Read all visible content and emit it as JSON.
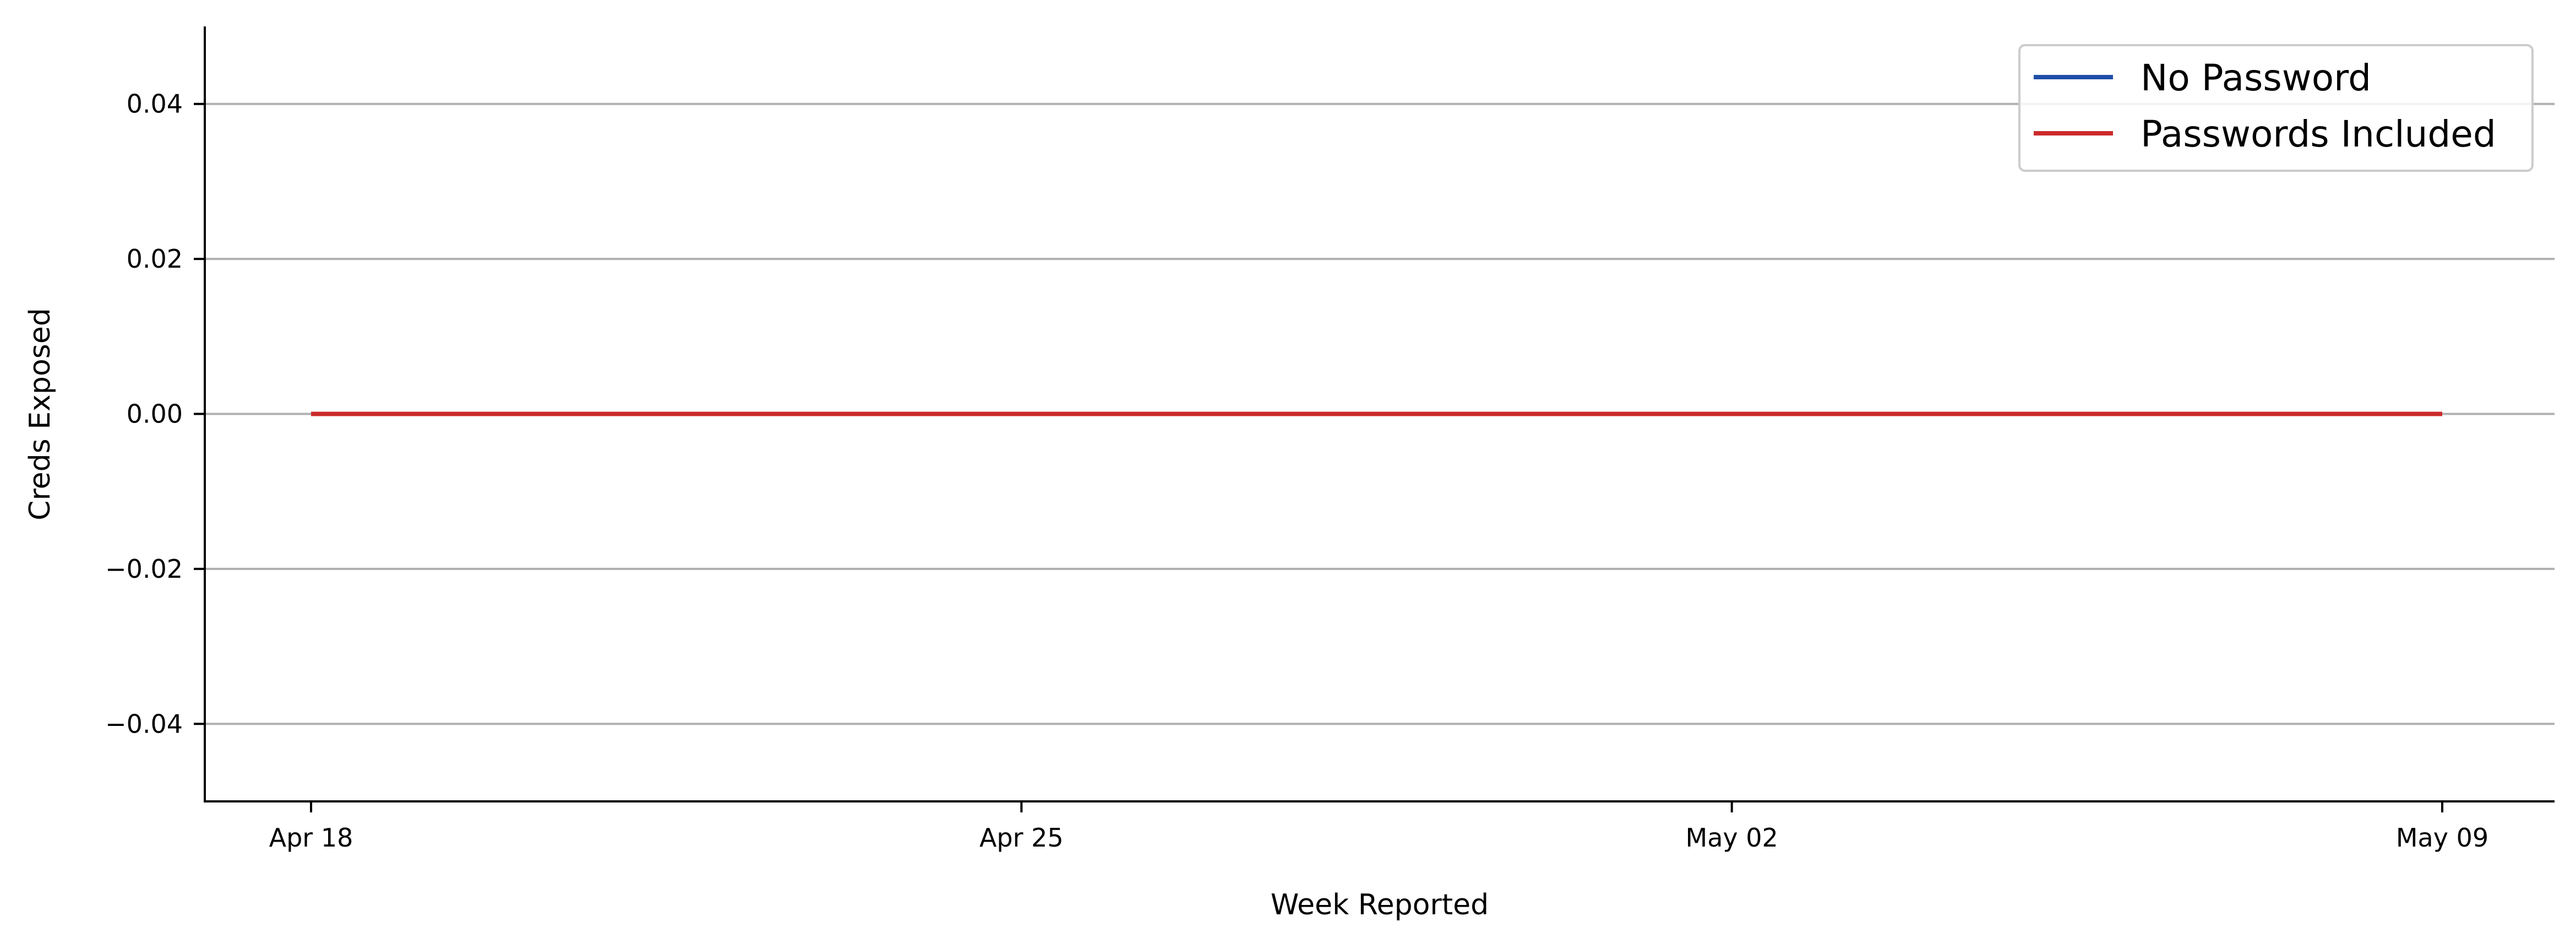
{
  "chart_data": {
    "type": "line",
    "title": "",
    "xlabel": "Week Reported",
    "ylabel": "Creds Exposed",
    "x": [
      "2021-04-18",
      "2021-04-25",
      "2021-05-02",
      "2021-05-09"
    ],
    "x_ticks": [
      "Apr 18",
      "Apr 25",
      "May 02",
      "May 09"
    ],
    "ylim": [
      -0.05,
      0.05
    ],
    "y_ticks": [
      -0.04,
      -0.02,
      0.0,
      0.02,
      0.04
    ],
    "y_tick_labels": [
      "−0.04",
      "−0.02",
      "0.00",
      "0.02",
      "0.04"
    ],
    "grid": "horizontal",
    "legend_position": "top-right",
    "series": [
      {
        "name": "No Password",
        "color": "#1f4ea8",
        "values": [
          0,
          0,
          0,
          0
        ]
      },
      {
        "name": "Passwords Included",
        "color": "#cc2a2a",
        "values": [
          0,
          0,
          0,
          0
        ]
      }
    ]
  }
}
